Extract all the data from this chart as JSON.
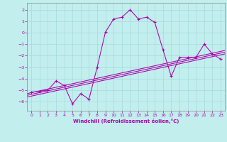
{
  "xlabel": "Windchill (Refroidissement éolien,°C)",
  "xlim": [
    -0.5,
    23.5
  ],
  "ylim": [
    -6.8,
    2.6
  ],
  "yticks": [
    2,
    1,
    0,
    -1,
    -2,
    -3,
    -4,
    -5,
    -6
  ],
  "xticks": [
    0,
    1,
    2,
    3,
    4,
    5,
    6,
    7,
    8,
    9,
    10,
    11,
    12,
    13,
    14,
    15,
    16,
    17,
    18,
    19,
    20,
    21,
    22,
    23
  ],
  "bg_color": "#c2eeee",
  "grid_color": "#a8dede",
  "line_color": "#aa00aa",
  "wiggly_x": [
    0,
    1,
    2,
    3,
    4,
    5,
    6,
    7,
    8,
    9,
    10,
    11,
    12,
    13,
    14,
    15,
    16,
    17,
    18,
    19,
    20,
    21,
    22,
    23
  ],
  "wiggly_y": [
    -5.2,
    -5.1,
    -5.0,
    -4.2,
    -4.6,
    -6.2,
    -5.3,
    -5.8,
    -3.0,
    0.05,
    1.2,
    1.35,
    2.0,
    1.2,
    1.35,
    0.9,
    -1.5,
    -3.8,
    -2.15,
    -2.15,
    -2.15,
    -1.0,
    -1.85,
    -2.3
  ],
  "straight_lines": [
    [
      -5.6,
      -1.85
    ],
    [
      -5.45,
      -1.7
    ],
    [
      -5.3,
      -1.55
    ]
  ],
  "spine_color": "#888888"
}
